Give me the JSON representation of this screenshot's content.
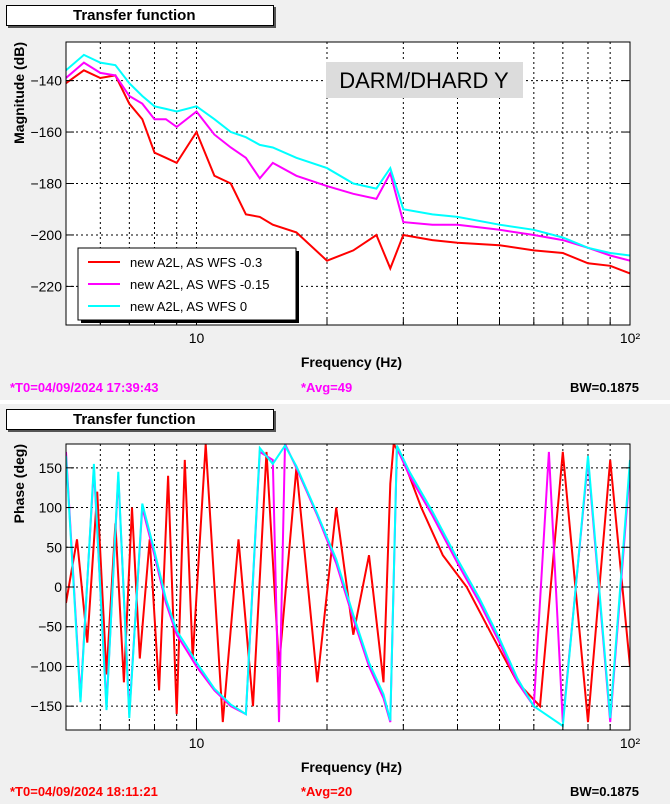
{
  "panels": [
    {
      "title": "Transfer function",
      "footer": {
        "t0": "*T0=04/09/2024 17:39:43",
        "avg": "*Avg=49",
        "bw": "BW=0.1875"
      }
    },
    {
      "title": "Transfer function",
      "footer": {
        "t0": "*T0=04/09/2024 18:11:21",
        "avg": "*Avg=20",
        "bw": "BW=0.1875"
      }
    }
  ],
  "colors": {
    "t0_top": "#ff00ff",
    "t0_bottom": "#ff0000",
    "red": "#ff0000",
    "magenta": "#ff00ff",
    "cyan": "#00ffff"
  },
  "chart_data": [
    {
      "type": "line",
      "title": "",
      "annotation": "DARM/DHARD Y",
      "xlabel": "Frequency (Hz)",
      "ylabel": "Magnitude (dB)",
      "xscale": "log",
      "xlim": [
        5,
        100
      ],
      "ylim": [
        -235,
        -125
      ],
      "xticks": [
        "10",
        "10²"
      ],
      "yticks": [
        -140,
        -160,
        -180,
        -200,
        -220
      ],
      "grid": true,
      "legend": {
        "placement": "bottom-left",
        "entries": [
          "new A2L, AS WFS -0.3",
          "new A2L, AS WFS -0.15",
          "new A2L, AS WFS 0"
        ]
      },
      "series": [
        {
          "name": "new A2L, AS WFS -0.3",
          "color": "#ff0000",
          "x": [
            5,
            5.5,
            6,
            6.5,
            7,
            7.5,
            8,
            8.5,
            9,
            10,
            11,
            12,
            13,
            14,
            15,
            17,
            20,
            23,
            26,
            28,
            30,
            35,
            40,
            50,
            60,
            70,
            80,
            90,
            100
          ],
          "y": [
            -141,
            -136,
            -139,
            -138,
            -149,
            -155,
            -168,
            -170,
            -172,
            -160,
            -177,
            -180,
            -192,
            -193,
            -196,
            -199,
            -210,
            -206,
            -200,
            -213,
            -200,
            -202,
            -203,
            -204,
            -206,
            -207,
            -211,
            -212,
            -215
          ]
        },
        {
          "name": "new A2L, AS WFS -0.15",
          "color": "#ff00ff",
          "x": [
            5,
            5.5,
            6,
            6.5,
            7,
            7.5,
            8,
            8.5,
            9,
            10,
            11,
            12,
            13,
            14,
            15,
            17,
            20,
            23,
            26,
            28,
            30,
            35,
            40,
            50,
            60,
            70,
            80,
            90,
            100
          ],
          "y": [
            -139,
            -133,
            -137,
            -138,
            -146,
            -149,
            -155,
            -155,
            -158,
            -152,
            -161,
            -166,
            -170,
            -178,
            -172,
            -177,
            -181,
            -184,
            -186,
            -176,
            -195,
            -196,
            -196,
            -198,
            -200,
            -202,
            -205,
            -208,
            -210
          ]
        },
        {
          "name": "new A2L, AS WFS 0",
          "color": "#00ffff",
          "x": [
            5,
            5.5,
            6,
            6.5,
            7,
            7.5,
            8,
            8.5,
            9,
            10,
            11,
            12,
            13,
            14,
            15,
            17,
            20,
            23,
            26,
            28,
            30,
            35,
            40,
            50,
            60,
            70,
            80,
            90,
            100
          ],
          "y": [
            -136,
            -130,
            -133,
            -134,
            -141,
            -146,
            -150,
            -151,
            -152,
            -150,
            -155,
            -160,
            -162,
            -165,
            -166,
            -170,
            -174,
            -180,
            -182,
            -174,
            -190,
            -192,
            -193,
            -196,
            -198,
            -201,
            -205,
            -207,
            -208
          ]
        }
      ]
    },
    {
      "type": "line",
      "title": "",
      "xlabel": "Frequency (Hz)",
      "ylabel": "Phase (deg)",
      "xscale": "log",
      "xlim": [
        5,
        100
      ],
      "ylim": [
        -180,
        180
      ],
      "xticks": [
        "10",
        "10²"
      ],
      "yticks": [
        150,
        100,
        50,
        0,
        -50,
        -100,
        -150
      ],
      "grid": true,
      "series": [
        {
          "color": "#ff0000",
          "x": [
            5,
            5.3,
            5.6,
            5.9,
            6.2,
            6.5,
            6.8,
            7.1,
            7.4,
            7.8,
            8.2,
            8.6,
            9,
            9.4,
            9.8,
            10.5,
            11.5,
            12.5,
            13.5,
            14.5,
            15.5,
            17,
            19,
            21,
            23,
            25,
            27,
            28,
            28.5,
            30,
            33,
            37,
            42,
            48,
            55,
            62,
            70,
            80,
            90,
            100
          ],
          "y": [
            -20,
            60,
            -70,
            120,
            -110,
            80,
            -120,
            100,
            -90,
            60,
            -130,
            140,
            -160,
            160,
            -90,
            180,
            -170,
            60,
            -150,
            170,
            -100,
            150,
            -120,
            100,
            -60,
            40,
            -120,
            130,
            180,
            160,
            100,
            40,
            0,
            -60,
            -120,
            -150,
            170,
            -170,
            160,
            -100
          ]
        },
        {
          "color": "#ff00ff",
          "x": [
            5,
            5.4,
            5.8,
            6.2,
            6.6,
            7,
            7.5,
            8,
            8.5,
            9,
            9.5,
            10,
            11,
            12,
            13,
            14,
            15,
            15.5,
            16,
            17,
            19,
            21,
            23,
            25,
            27,
            28,
            29,
            31,
            35,
            40,
            45,
            50,
            55,
            60,
            65,
            70,
            80,
            90,
            100
          ],
          "y": [
            170,
            -140,
            150,
            -150,
            140,
            -160,
            100,
            40,
            -20,
            -60,
            -80,
            -100,
            -130,
            -150,
            -160,
            170,
            160,
            -170,
            180,
            150,
            90,
            30,
            -40,
            -100,
            -140,
            -170,
            175,
            140,
            90,
            30,
            -20,
            -70,
            -120,
            -150,
            170,
            -170,
            160,
            -170,
            150
          ]
        },
        {
          "color": "#00ffff",
          "x": [
            5,
            5.4,
            5.8,
            6.2,
            6.6,
            7,
            7.5,
            8,
            8.5,
            9,
            9.5,
            10,
            11,
            12,
            13,
            14,
            15,
            16,
            17,
            19,
            21,
            23,
            25,
            27,
            28,
            29,
            31,
            35,
            40,
            45,
            50,
            55,
            60,
            70,
            80,
            90,
            100
          ],
          "y": [
            165,
            -145,
            155,
            -155,
            145,
            -165,
            105,
            45,
            -15,
            -55,
            -75,
            -95,
            -128,
            -148,
            -160,
            175,
            155,
            178,
            152,
            92,
            35,
            -35,
            -95,
            -135,
            -168,
            178,
            145,
            95,
            35,
            -15,
            -65,
            -115,
            -150,
            -175,
            165,
            -165,
            160
          ]
        }
      ]
    }
  ]
}
